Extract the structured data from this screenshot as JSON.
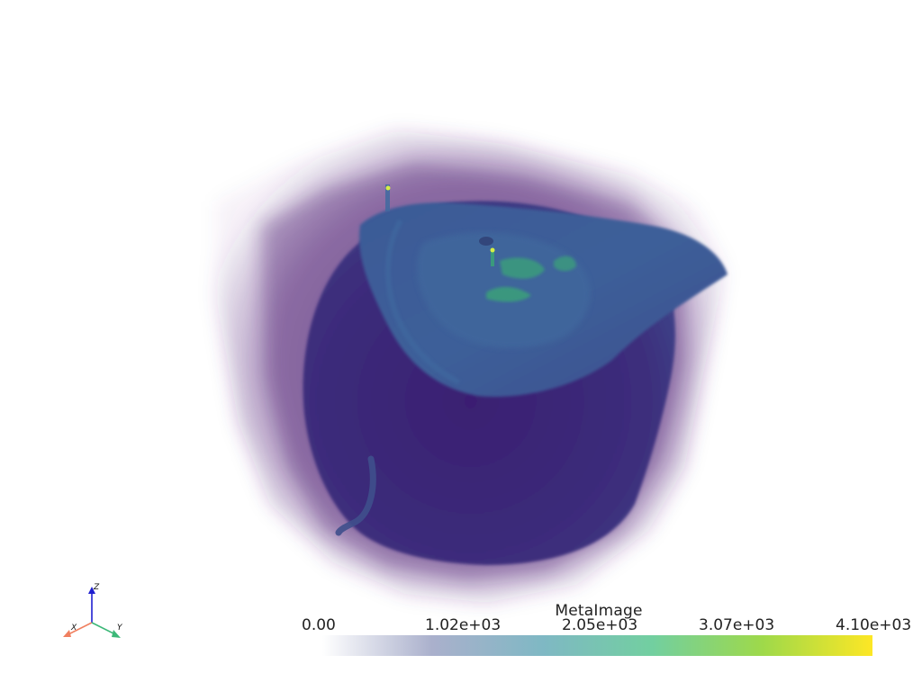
{
  "scalar_bar": {
    "title": "MetaImage",
    "labels": [
      "0.00",
      "1.02e+03",
      "2.05e+03",
      "3.07e+03",
      "4.10e+03"
    ],
    "colors": [
      "#ffffff",
      "#aab0cc",
      "#7fb8c4",
      "#72cfa0",
      "#9ed94a",
      "#fde725"
    ]
  },
  "orientation_axes": {
    "x_label": "X",
    "y_label": "Y",
    "z_label": "Z",
    "x_color": "#f08060",
    "y_color": "#3cb878",
    "z_color": "#1f1fd0"
  },
  "volume": {
    "outer_color": "#44106a",
    "body_color": "#3f2a7a",
    "cap_color": "#3e5a95",
    "highlight_color": "#3aa07a",
    "hotspot_color": "#d6ee45"
  }
}
